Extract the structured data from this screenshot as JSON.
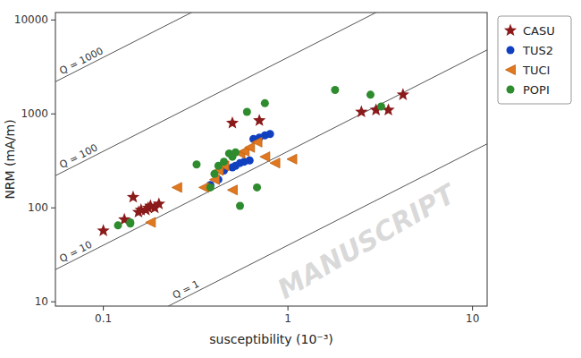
{
  "chart_data": {
    "type": "scatter",
    "xlabel": "susceptibility (10⁻³)",
    "ylabel": "NRM (mA/m)",
    "log": true,
    "xlim": [
      0.055,
      12
    ],
    "ylim": [
      9,
      12000
    ],
    "xticks": [
      0.1,
      1,
      10
    ],
    "yticks": [
      10,
      100,
      1000,
      10000
    ],
    "legend": "right",
    "series": [
      {
        "name": "CASU",
        "color": "#8B1A1A",
        "marker": "star",
        "x": [
          0.1,
          0.13,
          0.145,
          0.155,
          0.16,
          0.17,
          0.175,
          0.18,
          0.19,
          0.2,
          0.5,
          0.7,
          2.5,
          3.0,
          3.5,
          4.2
        ],
        "values": [
          57,
          75,
          130,
          90,
          95,
          95,
          100,
          105,
          100,
          110,
          800,
          850,
          1050,
          1100,
          1100,
          1600
        ]
      },
      {
        "name": "TUS2",
        "color": "#1040C0",
        "marker": "circle",
        "x": [
          0.38,
          0.42,
          0.45,
          0.5,
          0.52,
          0.55,
          0.58,
          0.62,
          0.65,
          0.7,
          0.75,
          0.8
        ],
        "values": [
          175,
          200,
          250,
          270,
          280,
          300,
          310,
          320,
          540,
          560,
          590,
          610
        ]
      },
      {
        "name": "TUCI",
        "color": "#E07820",
        "marker": "triangle-left",
        "x": [
          0.18,
          0.25,
          0.35,
          0.4,
          0.42,
          0.45,
          0.5,
          0.55,
          0.58,
          0.62,
          0.68,
          0.75,
          0.85,
          1.05
        ],
        "values": [
          70,
          165,
          165,
          200,
          250,
          280,
          155,
          380,
          400,
          440,
          500,
          350,
          300,
          330
        ]
      },
      {
        "name": "POPI",
        "color": "#2E8B2E",
        "marker": "circle",
        "x": [
          0.12,
          0.14,
          0.14,
          0.32,
          0.38,
          0.4,
          0.42,
          0.45,
          0.48,
          0.5,
          0.52,
          0.55,
          0.6,
          0.68,
          0.75,
          1.8,
          2.8,
          3.2
        ],
        "values": [
          65,
          68,
          70,
          290,
          165,
          230,
          280,
          310,
          380,
          350,
          390,
          105,
          1050,
          165,
          1300,
          1800,
          1600,
          1200
        ]
      }
    ],
    "lines": [
      {
        "label": "Q = 1000",
        "color": "#555555",
        "x": [
          0.055,
          12
        ],
        "values": [
          2200,
          480000
        ]
      },
      {
        "label": "Q = 100",
        "color": "#555555",
        "x": [
          0.055,
          12
        ],
        "values": [
          220,
          48000
        ]
      },
      {
        "label": "Q = 10",
        "color": "#555555",
        "x": [
          0.055,
          12
        ],
        "values": [
          22,
          4800
        ]
      },
      {
        "label": "Q = 1",
        "color": "#555555",
        "x": [
          0.055,
          12
        ],
        "values": [
          2.2,
          480
        ]
      }
    ],
    "annotations": [
      {
        "text": "MANUSCRIPT",
        "color": "#C0C0C0"
      }
    ]
  }
}
